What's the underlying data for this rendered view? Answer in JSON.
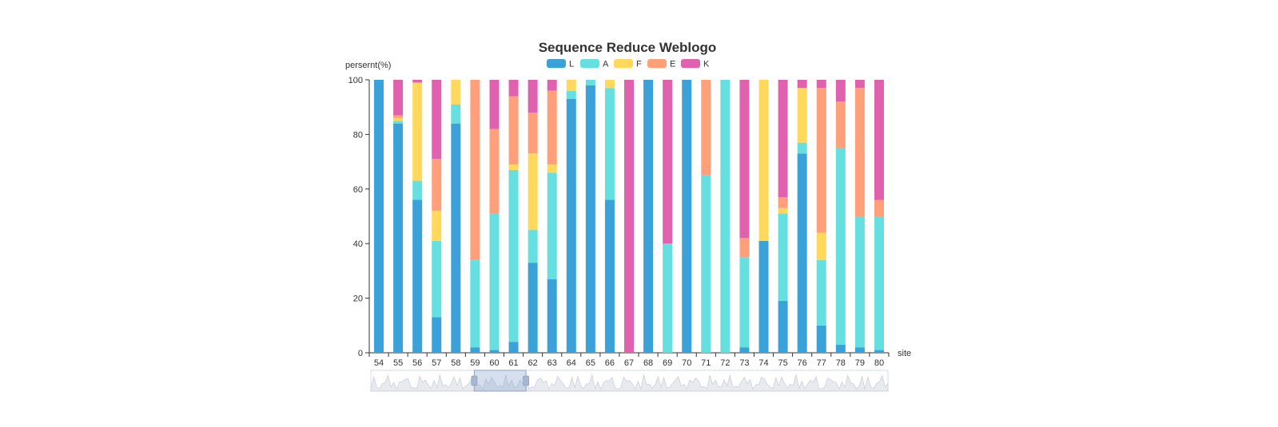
{
  "colors": {
    "L": "#3aa1d9",
    "A": "#66dfe1",
    "F": "#ffd85c",
    "E": "#ffa07a",
    "K": "#e062ae",
    "axis": "#333333",
    "text": "#333333"
  },
  "chart_data": {
    "type": "bar",
    "stacked": true,
    "title": "Sequence Reduce Weblogo",
    "xlabel": "site",
    "ylabel": "persernt(%)",
    "ylim": [
      0,
      100
    ],
    "yticks": [
      0,
      20,
      40,
      60,
      80,
      100
    ],
    "legend_position": "top-center",
    "categories": [
      "54",
      "55",
      "56",
      "57",
      "58",
      "59",
      "60",
      "61",
      "62",
      "63",
      "64",
      "65",
      "66",
      "67",
      "68",
      "69",
      "70",
      "71",
      "72",
      "73",
      "74",
      "75",
      "76",
      "77",
      "78",
      "79",
      "80"
    ],
    "series": [
      {
        "name": "L",
        "values": [
          100,
          84,
          56,
          13,
          84,
          2,
          1,
          4,
          33,
          27,
          93,
          98,
          56,
          0,
          100,
          0,
          100,
          0,
          0,
          2,
          41,
          19,
          73,
          10,
          3,
          2,
          1
        ]
      },
      {
        "name": "A",
        "values": [
          0,
          1,
          7,
          28,
          7,
          32,
          50,
          63,
          12,
          39,
          3,
          2,
          41,
          0,
          0,
          40,
          0,
          65,
          100,
          33,
          0,
          32,
          4,
          24,
          72,
          48,
          49
        ]
      },
      {
        "name": "F",
        "values": [
          0,
          1,
          36,
          11,
          9,
          0,
          0,
          2,
          28,
          3,
          4,
          0,
          3,
          0,
          0,
          0,
          0,
          0,
          0,
          0,
          59,
          2,
          20,
          10,
          0,
          0,
          0
        ]
      },
      {
        "name": "E",
        "values": [
          0,
          1,
          0,
          19,
          0,
          66,
          31,
          25,
          15,
          27,
          0,
          0,
          0,
          0,
          0,
          0,
          0,
          35,
          0,
          7,
          0,
          4,
          0,
          53,
          17,
          47,
          6
        ]
      },
      {
        "name": "K",
        "values": [
          0,
          13,
          1,
          29,
          0,
          0,
          18,
          6,
          12,
          4,
          0,
          0,
          0,
          100,
          0,
          60,
          0,
          0,
          0,
          58,
          0,
          43,
          3,
          3,
          8,
          3,
          44
        ]
      }
    ],
    "datazoom": {
      "start_percent": 20,
      "end_percent": 30
    }
  }
}
